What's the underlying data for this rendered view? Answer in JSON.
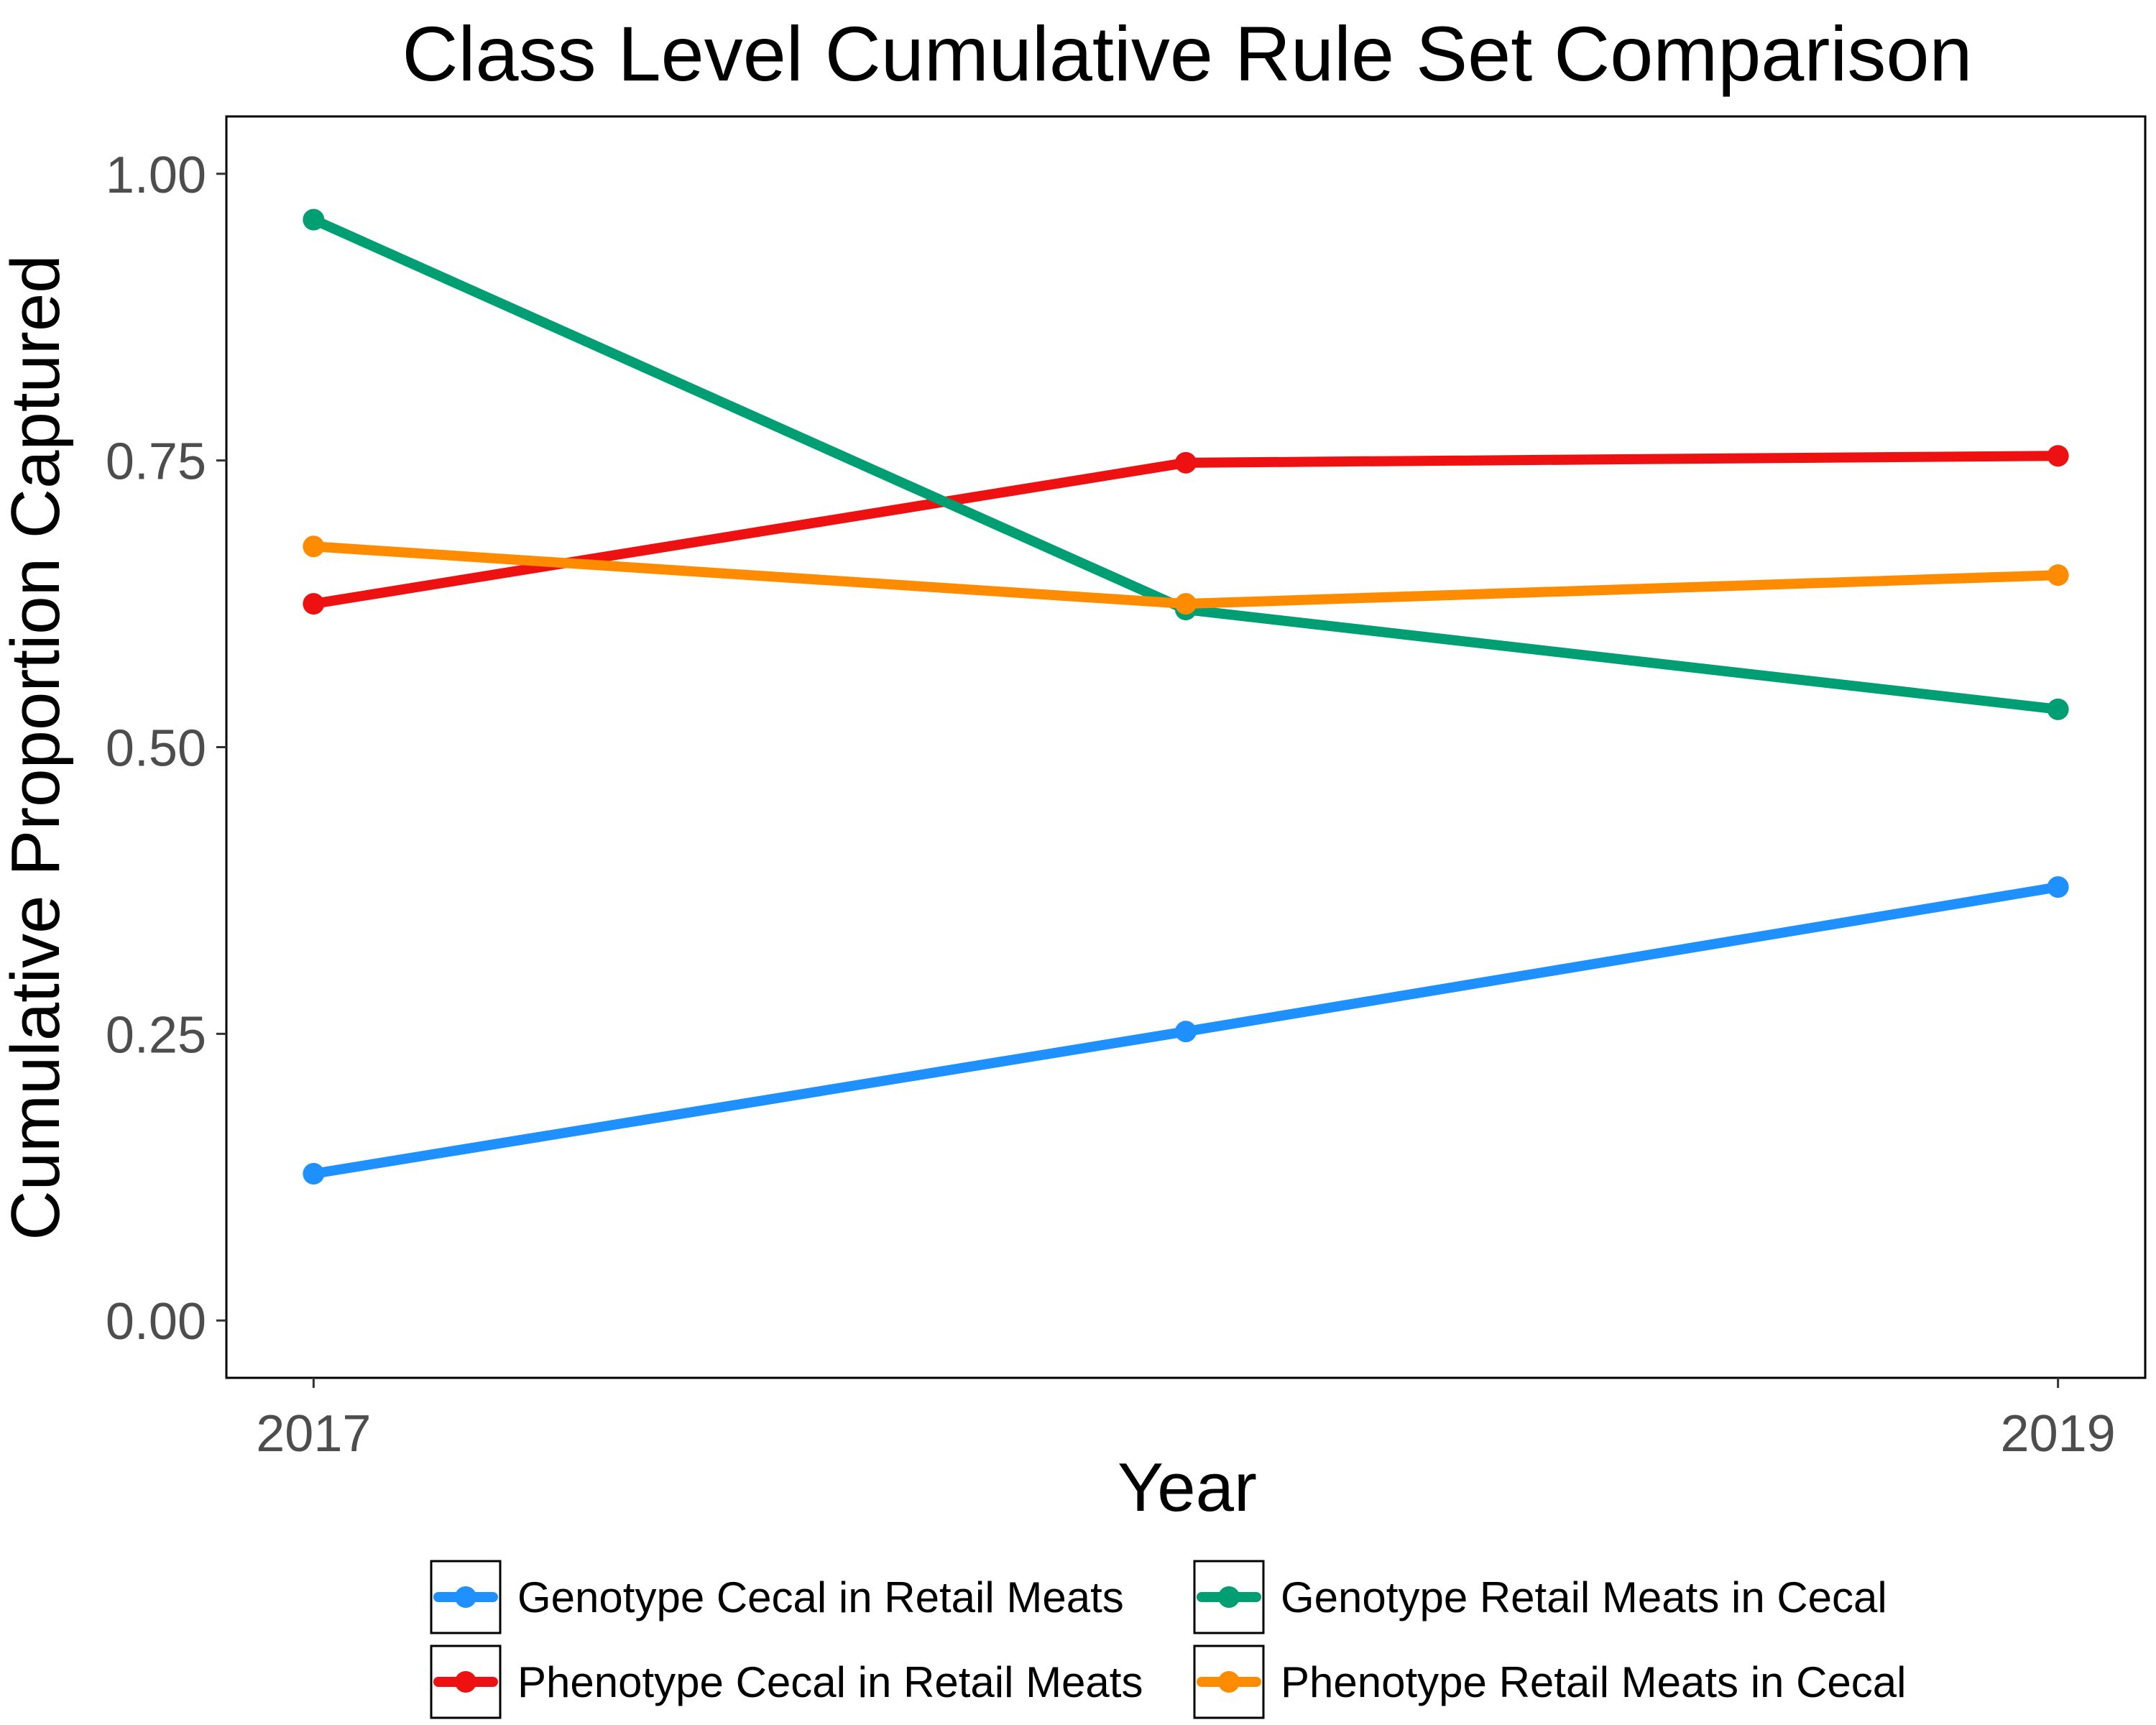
{
  "chart_data": {
    "type": "line",
    "title": "Class Level Cumulative Rule Set Comparison",
    "xlabel": "Year",
    "ylabel": "Cumulative Proportion Captured",
    "x": [
      2017,
      2018,
      2019
    ],
    "x_tick_labels": [
      "2017",
      "2019"
    ],
    "x_tick_values": [
      2017,
      2019
    ],
    "xlim": [
      2016.9,
      2019.1
    ],
    "ylim": [
      -0.05,
      1.05
    ],
    "y_ticks": [
      0,
      0.25,
      0.5,
      0.75,
      1.0
    ],
    "y_tick_labels": [
      "0.00",
      "0.25",
      "0.50",
      "0.75",
      "1.00"
    ],
    "grid": false,
    "legend_position": "bottom",
    "series": [
      {
        "name": "Genotype Cecal in Retail Meats",
        "color": "#1e90ff",
        "values": [
          0.128,
          0.252,
          0.378
        ]
      },
      {
        "name": "Phenotype Cecal in Retail Meats",
        "color": "#ee1111",
        "values": [
          0.625,
          0.748,
          0.754
        ]
      },
      {
        "name": "Genotype Retail Meats in Cecal",
        "color": "#009e73",
        "values": [
          0.96,
          0.62,
          0.533
        ]
      },
      {
        "name": "Phenotype Retail Meats in Cecal",
        "color": "#ff8c00",
        "values": [
          0.675,
          0.625,
          0.65
        ]
      }
    ]
  }
}
